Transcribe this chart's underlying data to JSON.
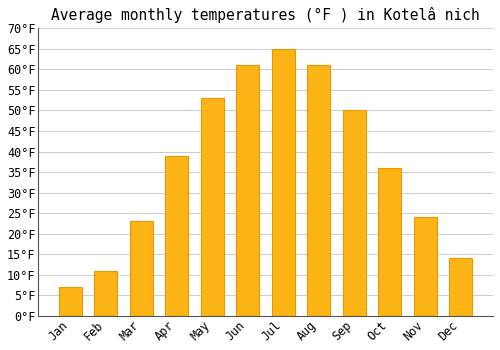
{
  "title": "Average monthly temperatures (°F ) in Kotelâ nich",
  "months": [
    "Jan",
    "Feb",
    "Mar",
    "Apr",
    "May",
    "Jun",
    "Jul",
    "Aug",
    "Sep",
    "Oct",
    "Nov",
    "Dec"
  ],
  "values": [
    7,
    11,
    23,
    39,
    53,
    61,
    65,
    61,
    50,
    36,
    24,
    14
  ],
  "bar_color_face": "#FDB515",
  "bar_color_edge": "#E8960A",
  "background_color": "#ffffff",
  "plot_bg_color": "#ffffff",
  "ylim": [
    0,
    70
  ],
  "ytick_step": 5,
  "grid_color": "#cccccc",
  "title_fontsize": 10.5,
  "tick_fontsize": 8.5,
  "figsize": [
    5.0,
    3.5
  ],
  "dpi": 100
}
